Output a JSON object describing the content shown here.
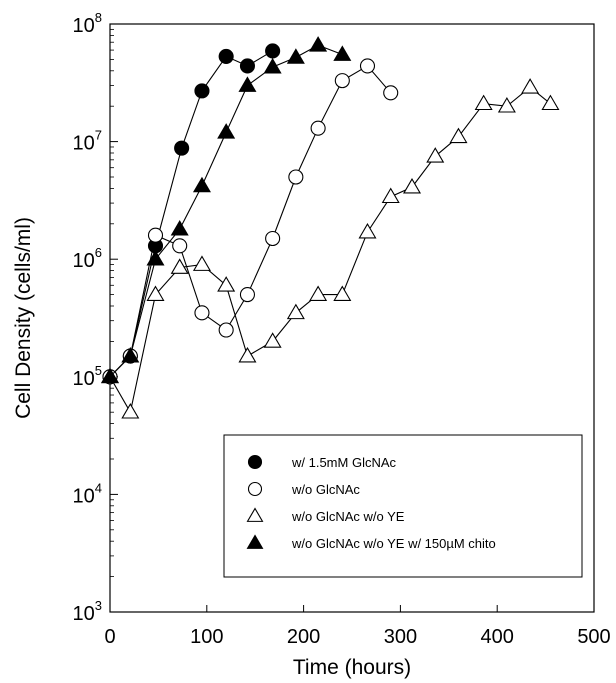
{
  "chart_data": {
    "type": "scatter",
    "title": "",
    "xlabel": "Time (hours)",
    "ylabel": "Cell Density (cells/ml)",
    "xlim": [
      0,
      500
    ],
    "ylim": [
      1000,
      100000000
    ],
    "yscale": "log",
    "xticks": [
      "0",
      "100",
      "200",
      "300",
      "400",
      "500"
    ],
    "yticks": [
      {
        "base": "10",
        "exp": "3",
        "value": 1000
      },
      {
        "base": "10",
        "exp": "4",
        "value": 10000
      },
      {
        "base": "10",
        "exp": "5",
        "value": 100000
      },
      {
        "base": "10",
        "exp": "6",
        "value": 1000000
      },
      {
        "base": "10",
        "exp": "7",
        "value": 10000000
      },
      {
        "base": "10",
        "exp": "8",
        "value": 100000000
      }
    ],
    "grid": false,
    "legend_position": "bottom-right",
    "series": [
      {
        "name": "w/ 1.5mM GlcNAc",
        "marker": "circle",
        "filled": true,
        "x": [
          0,
          21,
          47,
          74,
          95,
          120,
          142,
          168
        ],
        "y": [
          100000,
          150000,
          1300000,
          8800000,
          27000000,
          53000000,
          44000000,
          59000000
        ]
      },
      {
        "name": "w/o GlcNAc",
        "marker": "circle",
        "filled": false,
        "x": [
          0,
          21,
          47,
          72,
          95,
          120,
          142,
          168,
          192,
          215,
          240,
          266,
          290
        ],
        "y": [
          100000,
          150000,
          1600000,
          1300000,
          350000,
          250000,
          500000,
          1500000,
          5000000,
          13000000,
          33000000,
          44000000,
          26000000
        ]
      },
      {
        "name": "w/o GlcNAc w/o YE",
        "marker": "triangle",
        "filled": false,
        "x": [
          0,
          21,
          47,
          72,
          95,
          120,
          142,
          168,
          192,
          215,
          240,
          266,
          290,
          312,
          336,
          360,
          386,
          410,
          434,
          455
        ],
        "y": [
          100000,
          50000,
          500000,
          850000,
          900000,
          600000,
          150000,
          200000,
          350000,
          500000,
          500000,
          1700000,
          3400000,
          4100000,
          7500000,
          11000000,
          21000000,
          20000000,
          29000000,
          21000000
        ]
      },
      {
        "name": "w/o GlcNAc w/o YE w/ 150µM chito",
        "marker": "triangle",
        "filled": true,
        "x": [
          0,
          21,
          47,
          72,
          95,
          120,
          142,
          168,
          192,
          215,
          240
        ],
        "y": [
          100000,
          150000,
          1000000,
          1800000,
          4200000,
          12000000,
          30000000,
          43000000,
          52000000,
          66000000,
          55000000
        ]
      }
    ]
  }
}
